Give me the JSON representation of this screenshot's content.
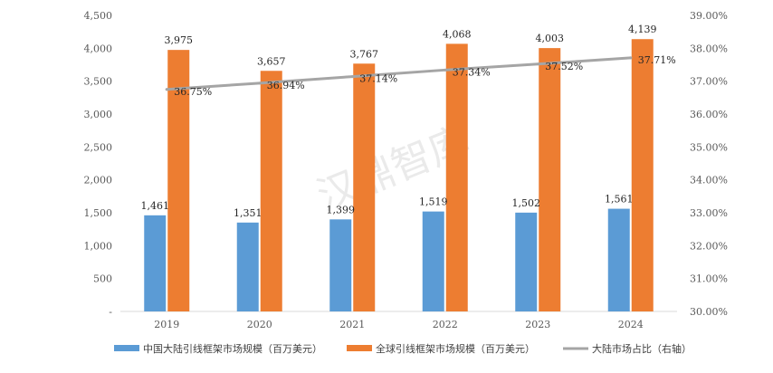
{
  "chart_data": {
    "type": "bar",
    "categories": [
      "2019",
      "2020",
      "2021",
      "2022",
      "2023",
      "2024"
    ],
    "series": [
      {
        "name": "中国大陆引线框架市场规模（百万美元）",
        "type": "bar",
        "axis": "left",
        "color": "#5b9bd5",
        "values": [
          1461,
          1351,
          1399,
          1519,
          1502,
          1561
        ],
        "labels": [
          "1,461",
          "1,351",
          "1,399",
          "1,519",
          "1,502",
          "1,561"
        ]
      },
      {
        "name": "全球引线框架市场规模（百万美元）",
        "type": "bar",
        "axis": "left",
        "color": "#ed7d31",
        "values": [
          3975,
          3657,
          3767,
          4068,
          4003,
          4139
        ],
        "labels": [
          "3,975",
          "3,657",
          "3,767",
          "4,068",
          "4,003",
          "4,139"
        ]
      },
      {
        "name": "大陆市场占比（右轴）",
        "type": "line",
        "axis": "right",
        "color": "#a5a5a5",
        "values": [
          36.75,
          36.94,
          37.14,
          37.34,
          37.52,
          37.71
        ],
        "labels": [
          "36.75%",
          "36.94%",
          "37.14%",
          "37.34%",
          "37.52%",
          "37.71%"
        ]
      }
    ],
    "y_left": {
      "range": [
        0,
        4500
      ],
      "ticks": [
        0,
        500,
        1000,
        1500,
        2000,
        2500,
        3000,
        3500,
        4000,
        4500
      ],
      "tick_labels": [
        "-",
        "500",
        "1,000",
        "1,500",
        "2,000",
        "2,500",
        "3,000",
        "3,500",
        "4,000",
        "4,500"
      ]
    },
    "y_right": {
      "range": [
        30,
        39
      ],
      "ticks": [
        30,
        31,
        32,
        33,
        34,
        35,
        36,
        37,
        38,
        39
      ],
      "tick_labels": [
        "30.00%",
        "31.00%",
        "32.00%",
        "33.00%",
        "34.00%",
        "35.00%",
        "36.00%",
        "37.00%",
        "38.00%",
        "39.00%"
      ]
    },
    "grid": false,
    "legend_position": "bottom",
    "watermark": "汉鼎智库"
  }
}
